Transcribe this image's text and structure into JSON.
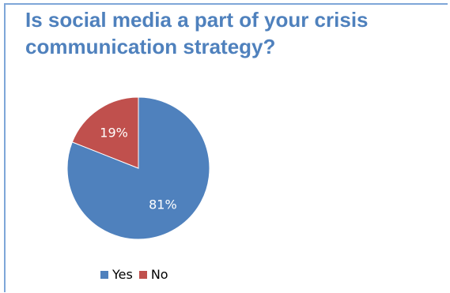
{
  "title": "Is social media a part of your crisis communication strategy?",
  "chart_data": {
    "type": "pie",
    "title": "Is social media a part of your crisis communication strategy?",
    "categories": [
      "Yes",
      "No"
    ],
    "values": [
      81,
      19
    ],
    "data_labels": [
      "81%",
      "19%"
    ],
    "colors": [
      "#4f81bd",
      "#c0504d"
    ],
    "legend_position": "bottom"
  }
}
